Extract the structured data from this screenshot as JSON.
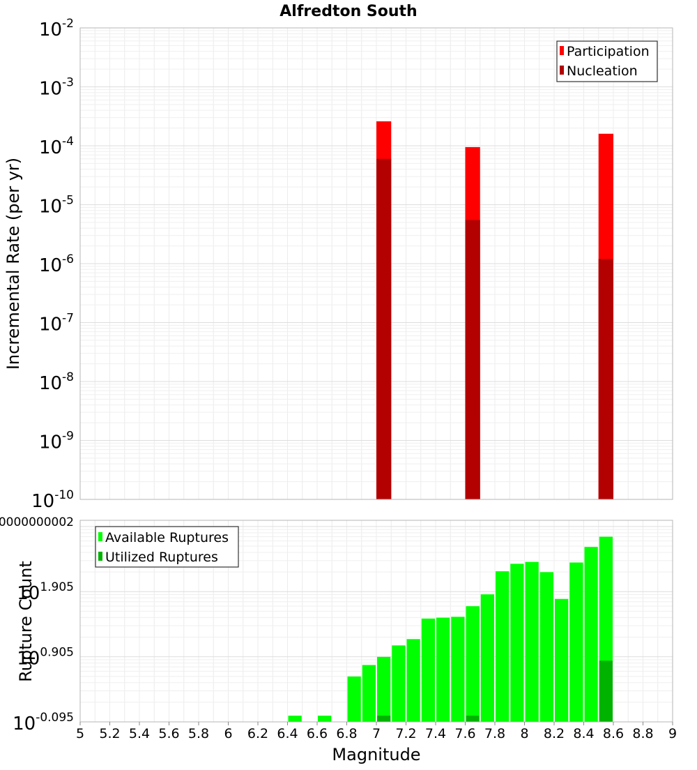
{
  "chart_data": [
    {
      "type": "bar",
      "title": "Alfredton South",
      "ylabel": "Incremental Rate (per yr)",
      "xlabel": "",
      "y_scale": "log",
      "ylim_exp": [
        -10,
        -2
      ],
      "xlim": [
        5,
        9
      ],
      "grid": true,
      "legend_position": "top-right",
      "bar_width": 0.1,
      "x": [
        7.05,
        7.65,
        8.55
      ],
      "series": [
        {
          "name": "Participation",
          "color": "#ff0000",
          "values": [
            0.00026,
            9.5e-05,
            0.00016
          ]
        },
        {
          "name": "Nucleation",
          "color": "#b30000",
          "values": [
            6e-05,
            5.5e-06,
            1.2e-06
          ]
        }
      ]
    },
    {
      "type": "bar",
      "xlabel": "Magnitude",
      "ylabel": "Rupture Count",
      "y_scale": "log",
      "ylim_exp": [
        0,
        3
      ],
      "xlim": [
        5,
        9
      ],
      "x_ticks": [
        "5",
        "5.2",
        "5.4",
        "5.6",
        "5.8",
        "6",
        "6.2",
        "6.4",
        "6.6",
        "6.8",
        "7",
        "7.2",
        "7.4",
        "7.6",
        "7.8",
        "8",
        "8.2",
        "8.4",
        "8.6",
        "8.8",
        "9"
      ],
      "grid": true,
      "legend_position": "top-left",
      "bar_width": 0.1,
      "x": [
        6.45,
        6.65,
        6.85,
        6.95,
        7.05,
        7.15,
        7.25,
        7.35,
        7.45,
        7.55,
        7.65,
        7.75,
        7.85,
        7.95,
        8.05,
        8.15,
        8.25,
        8.35,
        8.45,
        8.55
      ],
      "series": [
        {
          "name": "Available Ruptures",
          "color": "#00ff00",
          "values": [
            1,
            1,
            4,
            6,
            8,
            12,
            15,
            31,
            32,
            33,
            48,
            73,
            165,
            215,
            230,
            160,
            62,
            225,
            390,
            560
          ]
        },
        {
          "name": "Utilized Ruptures",
          "color": "#00b300",
          "values": [
            0,
            0,
            0,
            0,
            1,
            0,
            0,
            0,
            0,
            0,
            1,
            0,
            0,
            0,
            0,
            0,
            0,
            0,
            0,
            7
          ]
        }
      ]
    }
  ]
}
